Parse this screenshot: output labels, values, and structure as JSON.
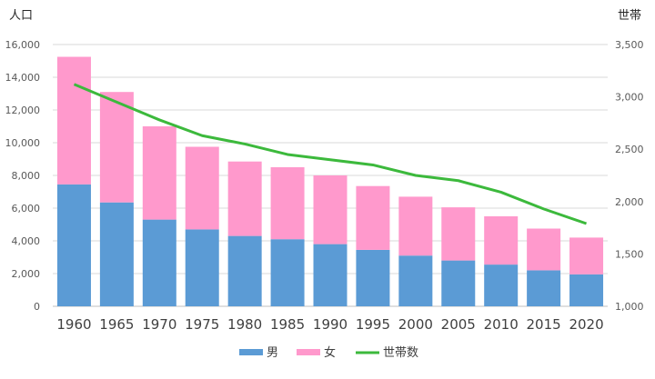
{
  "chart_data": {
    "type": "bar",
    "stacked": true,
    "categories": [
      "1960",
      "1965",
      "1970",
      "1975",
      "1980",
      "1985",
      "1990",
      "1995",
      "2000",
      "2005",
      "2010",
      "2015",
      "2020"
    ],
    "series": [
      {
        "name": "男",
        "type": "bar",
        "axis": "left",
        "color": "#5b9bd5",
        "values": [
          7450,
          6350,
          5300,
          4700,
          4300,
          4100,
          3800,
          3450,
          3100,
          2800,
          2550,
          2200,
          1950
        ]
      },
      {
        "name": "女",
        "type": "bar",
        "axis": "left",
        "color": "#ff99cc",
        "values": [
          7800,
          6750,
          5700,
          5050,
          4550,
          4400,
          4200,
          3900,
          3600,
          3250,
          2950,
          2550,
          2250
        ]
      },
      {
        "name": "世帯数",
        "type": "line",
        "axis": "right",
        "color": "#3cb93c",
        "values": [
          3120,
          2950,
          2780,
          2630,
          2550,
          2450,
          2400,
          2350,
          2250,
          2200,
          2090,
          1930,
          1790
        ]
      }
    ],
    "ylabel_left": "人口",
    "ylabel_right": "世帯",
    "ylim_left": [
      0,
      16000
    ],
    "ylim_right": [
      1000,
      3500
    ],
    "yticks_left": [
      "0",
      "2,000",
      "4,000",
      "6,000",
      "8,000",
      "10,000",
      "12,000",
      "14,000",
      "16,000"
    ],
    "yticks_right": [
      "1,000",
      "1,500",
      "2,000",
      "2,500",
      "3,000",
      "3,500"
    ],
    "grid": true,
    "legend_position": "bottom-center"
  }
}
